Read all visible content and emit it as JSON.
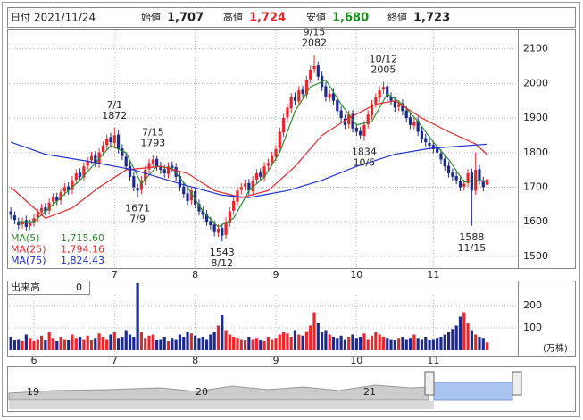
{
  "header": {
    "items": [
      {
        "label": "日付",
        "value": "2021/11/24"
      },
      {
        "label": "始値",
        "value": "1,707"
      },
      {
        "label": "高値",
        "value": "1,724"
      },
      {
        "label": "安値",
        "value": "1,680"
      },
      {
        "label": "終値",
        "value": "1,723"
      }
    ]
  },
  "chart_data": [
    {
      "type": "candlestick",
      "xlim": [
        -0.5,
        132
      ],
      "xticks": [
        {
          "value": 27,
          "label": "7"
        },
        {
          "value": 48,
          "label": "8"
        },
        {
          "value": 69,
          "label": "9"
        },
        {
          "value": 90,
          "label": "10"
        },
        {
          "value": 110,
          "label": "11"
        }
      ],
      "ylim": [
        1466,
        2156
      ],
      "yticks": [
        1500,
        1600,
        1700,
        1800,
        1900,
        2000,
        2100
      ],
      "grid": true,
      "up_color": "#e8262b",
      "down_color": "#1c2a8c",
      "open": [
        1630,
        1618,
        1600,
        1592,
        1605,
        1588,
        1598,
        1612,
        1628,
        1642,
        1632,
        1658,
        1672,
        1662,
        1688,
        1702,
        1692,
        1722,
        1742,
        1728,
        1762,
        1778,
        1792,
        1768,
        1802,
        1822,
        1845,
        1828,
        1852,
        1812,
        1788,
        1762,
        1732,
        1698,
        1692,
        1718,
        1752,
        1768,
        1782,
        1762,
        1752,
        1738,
        1762,
        1758,
        1732,
        1702,
        1682,
        1662,
        1688,
        1652,
        1632,
        1622,
        1602,
        1592,
        1568,
        1582,
        1562,
        1598,
        1632,
        1658,
        1692,
        1702,
        1712,
        1688,
        1722,
        1742,
        1728,
        1762,
        1772,
        1788,
        1812,
        1858,
        1902,
        1928,
        1962,
        1948,
        1982,
        1968,
        2012,
        2042,
        2052,
        2022,
        1992,
        1958,
        1972,
        1952,
        1922,
        1898,
        1882,
        1912,
        1872,
        1862,
        1848,
        1882,
        1908,
        1942,
        1958,
        1982,
        1992,
        1962,
        1948,
        1932,
        1942,
        1922,
        1902,
        1878,
        1892,
        1862,
        1842,
        1828,
        1822,
        1812,
        1798,
        1782,
        1762,
        1742,
        1732,
        1718,
        1702,
        1712,
        1742,
        1690,
        1752,
        1718,
        1707
      ],
      "high": [
        1642,
        1630,
        1612,
        1612,
        1617,
        1607,
        1622,
        1637,
        1652,
        1654,
        1667,
        1682,
        1684,
        1697,
        1712,
        1714,
        1732,
        1752,
        1754,
        1772,
        1787,
        1802,
        1804,
        1812,
        1832,
        1852,
        1857,
        1872,
        1864,
        1824,
        1800,
        1774,
        1744,
        1710,
        1732,
        1762,
        1782,
        1793,
        1790,
        1774,
        1764,
        1772,
        1774,
        1770,
        1744,
        1714,
        1694,
        1702,
        1700,
        1664,
        1644,
        1634,
        1614,
        1604,
        1592,
        1594,
        1612,
        1642,
        1672,
        1702,
        1712,
        1722,
        1724,
        1732,
        1752,
        1754,
        1772,
        1782,
        1802,
        1822,
        1872,
        1912,
        1942,
        1972,
        1974,
        1992,
        1994,
        2022,
        2052,
        2082,
        2064,
        2034,
        2004,
        1982,
        1984,
        1964,
        1934,
        1910,
        1922,
        1924,
        1884,
        1874,
        1892,
        1922,
        1952,
        1972,
        1992,
        2005,
        2004,
        1974,
        1960,
        1952,
        1954,
        1934,
        1914,
        1902,
        1904,
        1874,
        1854,
        1840,
        1834,
        1824,
        1810,
        1794,
        1774,
        1754,
        1744,
        1730,
        1722,
        1752,
        1754,
        1800,
        1764,
        1730,
        1724
      ],
      "low": [
        1608,
        1593,
        1578,
        1580,
        1573,
        1576,
        1586,
        1600,
        1616,
        1618,
        1620,
        1646,
        1648,
        1650,
        1676,
        1678,
        1680,
        1710,
        1718,
        1716,
        1750,
        1766,
        1758,
        1756,
        1790,
        1810,
        1818,
        1816,
        1798,
        1778,
        1748,
        1718,
        1688,
        1671,
        1680,
        1706,
        1740,
        1756,
        1748,
        1738,
        1728,
        1726,
        1743,
        1718,
        1688,
        1668,
        1648,
        1650,
        1638,
        1618,
        1608,
        1588,
        1578,
        1558,
        1556,
        1543,
        1550,
        1586,
        1620,
        1646,
        1680,
        1690,
        1678,
        1676,
        1710,
        1718,
        1716,
        1750,
        1760,
        1776,
        1800,
        1846,
        1890,
        1916,
        1938,
        1936,
        1958,
        1956,
        2000,
        2030,
        2008,
        1978,
        1948,
        1946,
        1938,
        1908,
        1888,
        1868,
        1870,
        1858,
        1848,
        1838,
        1834,
        1870,
        1896,
        1930,
        1946,
        1970,
        1948,
        1938,
        1918,
        1920,
        1908,
        1888,
        1868,
        1866,
        1848,
        1828,
        1818,
        1808,
        1798,
        1788,
        1768,
        1748,
        1728,
        1718,
        1708,
        1688,
        1690,
        1700,
        1588,
        1678,
        1708,
        1688,
        1680
      ],
      "close": [
        1620,
        1605,
        1590,
        1600,
        1585,
        1595,
        1610,
        1625,
        1640,
        1630,
        1655,
        1670,
        1660,
        1685,
        1700,
        1690,
        1720,
        1740,
        1730,
        1760,
        1775,
        1790,
        1770,
        1800,
        1820,
        1840,
        1830,
        1850,
        1810,
        1790,
        1760,
        1730,
        1700,
        1690,
        1720,
        1750,
        1770,
        1780,
        1760,
        1750,
        1740,
        1760,
        1755,
        1730,
        1700,
        1680,
        1660,
        1690,
        1650,
        1630,
        1620,
        1600,
        1590,
        1570,
        1580,
        1560,
        1600,
        1630,
        1660,
        1690,
        1700,
        1710,
        1690,
        1720,
        1740,
        1730,
        1760,
        1770,
        1790,
        1810,
        1860,
        1900,
        1930,
        1960,
        1950,
        1980,
        1970,
        2010,
        2040,
        2050,
        2020,
        1990,
        1960,
        1970,
        1950,
        1920,
        1900,
        1880,
        1910,
        1870,
        1860,
        1850,
        1880,
        1910,
        1940,
        1960,
        1980,
        1990,
        1960,
        1950,
        1930,
        1940,
        1920,
        1900,
        1880,
        1890,
        1860,
        1840,
        1830,
        1820,
        1810,
        1800,
        1780,
        1760,
        1740,
        1730,
        1720,
        1700,
        1710,
        1740,
        1690,
        1750,
        1720,
        1700,
        1723
      ],
      "series": [
        {
          "name": "MA(5)",
          "color": "#2e8b2e",
          "legend_value": 1715.6,
          "legend_label": "1,715.60",
          "x": [
            2,
            6,
            10,
            14,
            18,
            22,
            26,
            30,
            34,
            38,
            42,
            46,
            50,
            54,
            58,
            62,
            66,
            70,
            74,
            78,
            82,
            86,
            90,
            94,
            98,
            102,
            106,
            110,
            114,
            118,
            122,
            124
          ],
          "values": [
            1600,
            1600,
            1640,
            1680,
            1720,
            1770,
            1820,
            1800,
            1710,
            1760,
            1755,
            1700,
            1630,
            1585,
            1610,
            1690,
            1730,
            1800,
            1920,
            1990,
            2010,
            1940,
            1880,
            1890,
            1970,
            1940,
            1890,
            1830,
            1780,
            1715,
            1720,
            1715.6
          ]
        },
        {
          "name": "MA(25)",
          "color": "#e8262b",
          "legend_value": 1794.16,
          "legend_label": "1,794.16",
          "x": [
            0,
            9,
            16,
            23,
            30,
            39,
            46,
            53,
            60,
            67,
            74,
            81,
            88,
            95,
            100,
            107,
            114,
            121,
            124
          ],
          "values": [
            1700,
            1610,
            1640,
            1700,
            1750,
            1760,
            1740,
            1690,
            1670,
            1690,
            1760,
            1850,
            1900,
            1940,
            1950,
            1900,
            1860,
            1825,
            1794.16
          ]
        },
        {
          "name": "MA(75)",
          "color": "#2030d0",
          "legend_value": 1824.43,
          "legend_label": "1,824.43",
          "x": [
            0,
            9,
            20,
            32,
            44,
            55,
            62,
            72,
            81,
            90,
            100,
            109,
            124
          ],
          "values": [
            1830,
            1795,
            1775,
            1750,
            1710,
            1677,
            1670,
            1690,
            1720,
            1760,
            1795,
            1812,
            1824.43
          ]
        }
      ],
      "legend": "lower left",
      "annotations": [
        {
          "date": "7/1",
          "value": 1872,
          "x": 27,
          "position": "above"
        },
        {
          "date": "7/9",
          "value": 1671,
          "x": 33,
          "position": "below"
        },
        {
          "date": "7/15",
          "value": 1793,
          "x": 37,
          "position": "above"
        },
        {
          "date": "8/12",
          "value": 1543,
          "x": 55,
          "position": "below"
        },
        {
          "date": "9/15",
          "value": 2082,
          "x": 79,
          "position": "above"
        },
        {
          "date": "10/5",
          "value": 1834,
          "x": 92,
          "position": "below"
        },
        {
          "date": "10/12",
          "value": 2005,
          "x": 97,
          "position": "above"
        },
        {
          "date": "11/15",
          "value": 1588,
          "x": 120,
          "position": "below"
        }
      ]
    },
    {
      "type": "bar",
      "title": "出来高",
      "current": 0,
      "unit": "(万株)",
      "xlim": [
        -0.5,
        132
      ],
      "xticks": [
        {
          "value": 6,
          "label": "6"
        },
        {
          "value": 27,
          "label": "7"
        },
        {
          "value": 48,
          "label": "8"
        },
        {
          "value": 69,
          "label": "9"
        },
        {
          "value": 90,
          "label": "10"
        },
        {
          "value": 110,
          "label": "11"
        }
      ],
      "ylim": [
        -24,
        308
      ],
      "yticks": [
        100,
        200
      ],
      "grid": true,
      "values": [
        60,
        45,
        50,
        40,
        70,
        55,
        40,
        50,
        65,
        45,
        80,
        55,
        40,
        60,
        50,
        45,
        70,
        55,
        60,
        50,
        65,
        45,
        55,
        75,
        60,
        50,
        70,
        80,
        55,
        60,
        90,
        70,
        60,
        300,
        80,
        55,
        65,
        70,
        45,
        50,
        60,
        40,
        55,
        50,
        70,
        60,
        80,
        75,
        65,
        55,
        60,
        50,
        70,
        80,
        110,
        160,
        90,
        70,
        60,
        55,
        50,
        45,
        60,
        50,
        55,
        45,
        40,
        60,
        50,
        55,
        70,
        80,
        75,
        60,
        90,
        70,
        65,
        85,
        110,
        170,
        120,
        80,
        90,
        70,
        60,
        55,
        65,
        50,
        60,
        70,
        55,
        60,
        75,
        50,
        65,
        80,
        70,
        60,
        55,
        50,
        45,
        55,
        60,
        50,
        55,
        70,
        55,
        50,
        60,
        45,
        50,
        55,
        60,
        70,
        80,
        95,
        110,
        150,
        170,
        120,
        90,
        70,
        60,
        55,
        35
      ]
    }
  ],
  "navigator": {
    "labels": [
      "19",
      "20",
      "21"
    ]
  }
}
